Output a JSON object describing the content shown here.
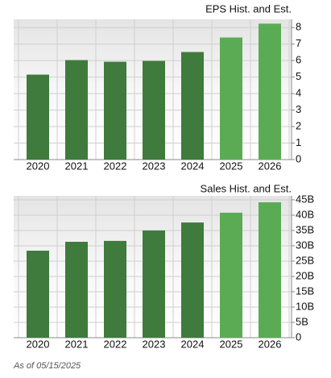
{
  "chart_data": [
    {
      "type": "bar",
      "title": "EPS Hist. and Est.",
      "categories": [
        "2020",
        "2021",
        "2022",
        "2023",
        "2024",
        "2025",
        "2026"
      ],
      "values": [
        5.15,
        6.03,
        5.93,
        5.98,
        6.52,
        7.4,
        8.24
      ],
      "colors": [
        "#3e7b3c",
        "#3e7b3c",
        "#3e7b3c",
        "#3e7b3c",
        "#3e7b3c",
        "#5bab55",
        "#5bab55"
      ],
      "ylim": [
        0,
        8.5
      ],
      "yticks": [
        0,
        1,
        2,
        3,
        4,
        5,
        6,
        7,
        8
      ],
      "grid": true
    },
    {
      "type": "bar",
      "title": "Sales Hist. and Est.",
      "categories": [
        "2020",
        "2021",
        "2022",
        "2023",
        "2024",
        "2025",
        "2026"
      ],
      "values": [
        28400000000,
        31300000000,
        31600000000,
        35000000000,
        37600000000,
        40800000000,
        44200000000
      ],
      "colors": [
        "#3e7b3c",
        "#3e7b3c",
        "#3e7b3c",
        "#3e7b3c",
        "#3e7b3c",
        "#5bab55",
        "#5bab55"
      ],
      "ylim": [
        0,
        46300000000
      ],
      "yticks": [
        0,
        {
          "value": 5000000000,
          "label": "5B"
        },
        {
          "value": 10000000000,
          "label": "10B"
        },
        {
          "value": 15000000000,
          "label": "15B"
        },
        {
          "value": 20000000000,
          "label": "20B"
        },
        {
          "value": 25000000000,
          "label": "25B"
        },
        {
          "value": 30000000000,
          "label": "30B"
        },
        {
          "value": 35000000000,
          "label": "35B"
        },
        {
          "value": 40000000000,
          "label": "40B"
        },
        {
          "value": 45000000000,
          "label": "45B"
        }
      ],
      "grid": true
    }
  ],
  "footer": "As of 05/15/2025"
}
